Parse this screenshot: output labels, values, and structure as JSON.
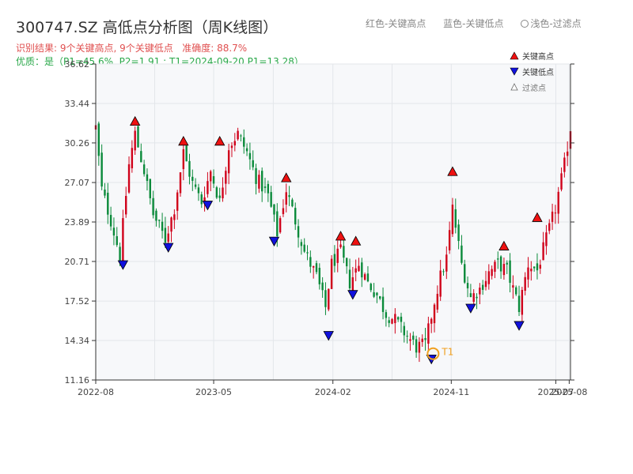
{
  "title": "300747.SZ 高低点分析图（周K线图）",
  "subtitle_result": "识别结果: 9个关键高点, 9个关键低点",
  "subtitle_accuracy": "准确度: 88.7%",
  "subtitle_quality": "优质：是（P1=45.6%, P2=1.91 ; T1=2024-09-20 P1=13.28）",
  "legend_top": {
    "red": "红色-关键高点",
    "blue": "蓝色-关键低点",
    "light": "浅色-过滤点"
  },
  "legend_inner": {
    "high": "关键高点",
    "low": "关键低点",
    "filtered": "过滤点"
  },
  "colors": {
    "up": "#d0021b",
    "down": "#0a8a3a",
    "high_marker": "#ee1111",
    "low_marker": "#1111dd",
    "t1_marker": "#f0a020",
    "plot_bg": "#f7f8fa",
    "grid": "#e3e6ea"
  },
  "chart_data": {
    "type": "candlestick",
    "frequency": "weekly",
    "ylim": [
      11.16,
      36.62
    ],
    "yticks": [
      "11.16",
      "14.34",
      "17.52",
      "20.71",
      "23.89",
      "27.07",
      "30.26",
      "33.44",
      "36.62"
    ],
    "xticks": [
      "2022-08",
      "2023-05",
      "2024-02",
      "2024-11",
      "2025-07",
      "2025-08"
    ],
    "x_range": [
      "2022-08-01",
      "2025-08-04"
    ],
    "grid": true,
    "close_path": [
      [
        "2022-08-01",
        31.5
      ],
      [
        "2022-08-15",
        26.5
      ],
      [
        "2022-09-05",
        24.0
      ],
      [
        "2022-09-26",
        21.2
      ],
      [
        "2022-10-17",
        28.5
      ],
      [
        "2022-10-31",
        31.0
      ],
      [
        "2022-11-21",
        28.0
      ],
      [
        "2022-12-12",
        24.5
      ],
      [
        "2023-01-09",
        22.5
      ],
      [
        "2023-01-30",
        25.0
      ],
      [
        "2023-02-20",
        29.5
      ],
      [
        "2023-03-13",
        27.0
      ],
      [
        "2023-04-03",
        25.5
      ],
      [
        "2023-04-24",
        28.0
      ],
      [
        "2023-05-15",
        25.5
      ],
      [
        "2023-06-05",
        30.0
      ],
      [
        "2023-06-26",
        31.0
      ],
      [
        "2023-07-17",
        29.5
      ],
      [
        "2023-08-07",
        27.5
      ],
      [
        "2023-09-04",
        26.0
      ],
      [
        "2023-09-25",
        23.0
      ],
      [
        "2023-10-16",
        26.5
      ],
      [
        "2023-11-06",
        24.0
      ],
      [
        "2023-11-27",
        21.5
      ],
      [
        "2023-12-25",
        19.5
      ],
      [
        "2024-01-15",
        17.0
      ],
      [
        "2024-01-29",
        20.5
      ],
      [
        "2024-02-19",
        21.5
      ],
      [
        "2024-03-11",
        19.0
      ],
      [
        "2024-04-01",
        20.5
      ],
      [
        "2024-04-22",
        19.0
      ],
      [
        "2024-05-13",
        18.0
      ],
      [
        "2024-06-03",
        16.5
      ],
      [
        "2024-06-24",
        16.0
      ],
      [
        "2024-07-15",
        15.0
      ],
      [
        "2024-08-12",
        13.8
      ],
      [
        "2024-09-02",
        14.0
      ],
      [
        "2024-09-23",
        17.5
      ],
      [
        "2024-10-07",
        19.5
      ],
      [
        "2024-10-21",
        21.0
      ],
      [
        "2024-11-04",
        25.0
      ],
      [
        "2024-11-25",
        20.5
      ],
      [
        "2024-12-16",
        17.8
      ],
      [
        "2025-01-06",
        18.5
      ],
      [
        "2025-01-27",
        19.8
      ],
      [
        "2025-02-17",
        20.5
      ],
      [
        "2025-03-10",
        20.0
      ],
      [
        "2025-04-07",
        17.0
      ],
      [
        "2025-04-28",
        20.5
      ],
      [
        "2025-05-19",
        20.0
      ],
      [
        "2025-06-09",
        22.5
      ],
      [
        "2025-06-30",
        25.0
      ],
      [
        "2025-07-21",
        28.5
      ],
      [
        "2025-08-04",
        31.5
      ]
    ],
    "key_highs": [
      {
        "date": "2022-10-31",
        "price": 31.55
      },
      {
        "date": "2023-02-20",
        "price": 29.95
      },
      {
        "date": "2023-05-15",
        "price": 29.95
      },
      {
        "date": "2023-10-16",
        "price": 27.0
      },
      {
        "date": "2024-02-19",
        "price": 22.3
      },
      {
        "date": "2024-03-25",
        "price": 21.9
      },
      {
        "date": "2024-11-04",
        "price": 27.5
      },
      {
        "date": "2025-03-03",
        "price": 21.5
      },
      {
        "date": "2025-05-19",
        "price": 23.8
      }
    ],
    "key_lows": [
      {
        "date": "2022-10-03",
        "price": 20.9
      },
      {
        "date": "2023-01-16",
        "price": 22.3
      },
      {
        "date": "2023-04-17",
        "price": 25.7
      },
      {
        "date": "2023-09-18",
        "price": 22.8
      },
      {
        "date": "2024-01-22",
        "price": 15.2
      },
      {
        "date": "2024-03-18",
        "price": 18.5
      },
      {
        "date": "2024-09-16",
        "price": 13.3
      },
      {
        "date": "2024-12-16",
        "price": 17.4
      },
      {
        "date": "2025-04-07",
        "price": 16.0
      }
    ],
    "t1": {
      "label": "T1",
      "date": "2024-09-20",
      "price": 13.28
    }
  }
}
